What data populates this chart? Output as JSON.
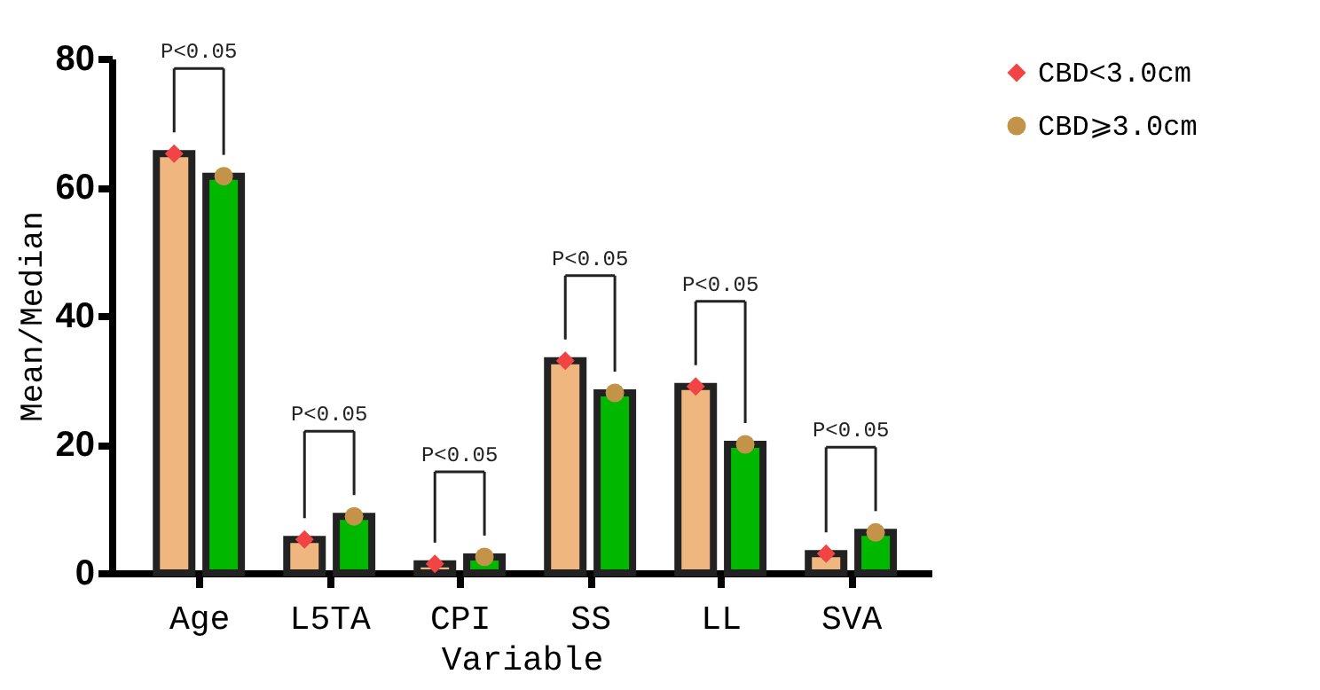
{
  "chart_data": {
    "type": "bar",
    "xlabel": "Variable",
    "ylabel": "Mean/Median",
    "categories": [
      "Age",
      "L5TA",
      "CPI",
      "SS",
      "LL",
      "SVA"
    ],
    "series": [
      {
        "color": "#f0b67f",
        "values": [
          65.2,
          5.2,
          1.4,
          33,
          29,
          3
        ]
      },
      {
        "color": "#00b800",
        "values": [
          61.7,
          8.8,
          2.5,
          28,
          20,
          6.3
        ]
      },
      {
        "type": "scatter",
        "name": "CBD<3.0cm",
        "color": "#f24444",
        "marker": "diamond",
        "values": [
          65.2,
          5.2,
          1.4,
          33,
          29,
          3
        ]
      },
      {
        "type": "scatter",
        "name": "CBD⩾3.0cm",
        "color": "#c4934a",
        "marker": "circle",
        "values": [
          61.7,
          8.8,
          2.5,
          28,
          20,
          6.3
        ]
      }
    ],
    "ylim": [
      0,
      80
    ],
    "yticks": [
      0,
      20,
      40,
      60,
      80
    ],
    "grid": false,
    "legend": "right",
    "annotations": [
      "P<0.05",
      "P<0.05",
      "P<0.05",
      "P<0.05",
      "P<0.05",
      "P<0.05"
    ]
  }
}
